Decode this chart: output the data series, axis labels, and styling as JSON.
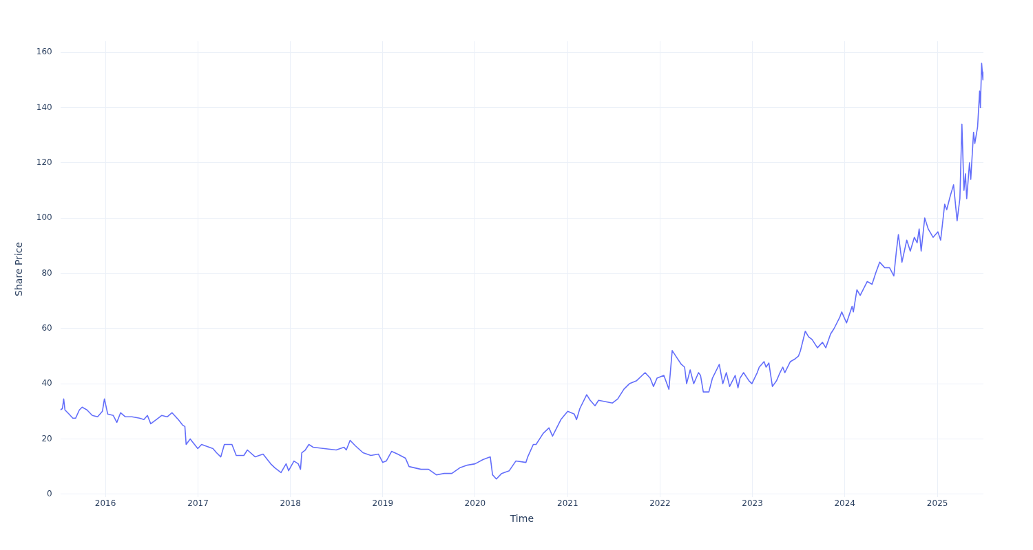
{
  "chart_data": {
    "type": "line",
    "xlabel": "Time",
    "ylabel": "Share Price",
    "xlim": [
      "2015-07-07",
      "2025-07-02"
    ],
    "ylim": [
      -1,
      164
    ],
    "xticks": [
      "2016",
      "2017",
      "2018",
      "2019",
      "2020",
      "2021",
      "2022",
      "2023",
      "2024",
      "2025"
    ],
    "yticks": [
      0,
      20,
      40,
      60,
      80,
      100,
      120,
      140,
      160
    ],
    "grid": true,
    "legend": false,
    "marker": "none",
    "line_style": "solid",
    "series": [
      {
        "color": "#636efa",
        "x": [
          "2015-07-07",
          "2015-07-15",
          "2015-07-20",
          "2015-07-25",
          "2015-08-10",
          "2015-08-25",
          "2015-09-05",
          "2015-09-20",
          "2015-10-01",
          "2015-10-20",
          "2015-11-10",
          "2015-12-01",
          "2015-12-20",
          "2015-12-28",
          "2016-01-10",
          "2016-02-01",
          "2016-02-15",
          "2016-03-01",
          "2016-03-20",
          "2016-04-15",
          "2016-05-15",
          "2016-06-01",
          "2016-06-15",
          "2016-06-28",
          "2016-07-20",
          "2016-08-10",
          "2016-09-01",
          "2016-09-20",
          "2016-10-15",
          "2016-11-01",
          "2016-11-10",
          "2016-11-15",
          "2016-12-01",
          "2016-12-31",
          "2017-01-15",
          "2017-03-01",
          "2017-03-15",
          "2017-04-01",
          "2017-04-15",
          "2017-05-15",
          "2017-06-01",
          "2017-07-01",
          "2017-07-15",
          "2017-08-15",
          "2017-09-15",
          "2017-10-15",
          "2017-11-01",
          "2017-11-25",
          "2017-12-15",
          "2017-12-25",
          "2018-01-15",
          "2018-02-01",
          "2018-02-10",
          "2018-02-15",
          "2018-03-01",
          "2018-03-15",
          "2018-04-01",
          "2018-05-15",
          "2018-07-01",
          "2018-08-01",
          "2018-08-10",
          "2018-08-25",
          "2018-09-15",
          "2018-10-15",
          "2018-11-15",
          "2018-12-15",
          "2019-01-01",
          "2019-01-15",
          "2019-02-05",
          "2019-03-01",
          "2019-04-01",
          "2019-04-15",
          "2019-06-01",
          "2019-07-01",
          "2019-08-01",
          "2019-09-01",
          "2019-10-01",
          "2019-11-01",
          "2019-12-01",
          "2020-01-01",
          "2020-02-01",
          "2020-03-01",
          "2020-03-10",
          "2020-03-25",
          "2020-04-15",
          "2020-05-15",
          "2020-06-10",
          "2020-07-20",
          "2020-07-27",
          "2020-08-18",
          "2020-08-29",
          "2020-09-26",
          "2020-10-19",
          "2020-11-02",
          "2020-12-05",
          "2021-01-01",
          "2021-01-27",
          "2021-02-05",
          "2021-02-18",
          "2021-03-17",
          "2021-03-31",
          "2021-04-19",
          "2021-05-03",
          "2021-06-27",
          "2021-07-18",
          "2021-08-11",
          "2021-09-02",
          "2021-09-29",
          "2021-11-03",
          "2021-11-23",
          "2021-12-06",
          "2021-12-20",
          "2022-01-16",
          "2022-02-05",
          "2022-02-18",
          "2022-03-04",
          "2022-03-26",
          "2022-04-08",
          "2022-04-16",
          "2022-04-30",
          "2022-05-14",
          "2022-06-02",
          "2022-06-10",
          "2022-06-21",
          "2022-07-13",
          "2022-07-27",
          "2022-08-23",
          "2022-09-06",
          "2022-09-20",
          "2022-10-03",
          "2022-10-25",
          "2022-11-05",
          "2022-11-13",
          "2022-11-27",
          "2022-12-19",
          "2022-12-30",
          "2023-01-20",
          "2023-01-28",
          "2023-02-16",
          "2023-02-24",
          "2023-03-07",
          "2023-03-21",
          "2023-04-06",
          "2023-04-20",
          "2023-05-01",
          "2023-05-09",
          "2023-05-31",
          "2023-06-19",
          "2023-07-02",
          "2023-07-10",
          "2023-07-29",
          "2023-08-11",
          "2023-08-25",
          "2023-09-15",
          "2023-10-05",
          "2023-10-18",
          "2023-11-06",
          "2023-11-20",
          "2023-12-12",
          "2023-12-20",
          "2024-01-08",
          "2024-01-30",
          "2024-02-04",
          "2024-02-18",
          "2024-03-02",
          "2024-03-30",
          "2024-04-18",
          "2024-05-02",
          "2024-05-18",
          "2024-06-07",
          "2024-06-26",
          "2024-07-13",
          "2024-07-23",
          "2024-07-31",
          "2024-08-14",
          "2024-09-02",
          "2024-09-16",
          "2024-10-02",
          "2024-10-13",
          "2024-10-21",
          "2024-10-29",
          "2024-11-12",
          "2024-11-26",
          "2024-12-15",
          "2025-01-03",
          "2025-01-14",
          "2025-01-30",
          "2025-02-07",
          "2025-02-21",
          "2025-03-06",
          "2025-03-20",
          "2025-03-31",
          "2025-04-08",
          "2025-04-16",
          "2025-04-22",
          "2025-04-27",
          "2025-05-08",
          "2025-05-13",
          "2025-05-24",
          "2025-05-29",
          "2025-06-09",
          "2025-06-17",
          "2025-06-20",
          "2025-06-25",
          "2025-06-30",
          "2025-07-02"
        ],
        "values": [
          30.5,
          31,
          34.5,
          30.5,
          29,
          27.5,
          27.5,
          30.5,
          31.5,
          30.5,
          28.5,
          28,
          30,
          34.5,
          29,
          28.5,
          26,
          29.5,
          28,
          28,
          27.5,
          27,
          28.5,
          25.5,
          27,
          28.5,
          28,
          29.5,
          27,
          25,
          24.5,
          18,
          20,
          16.5,
          18,
          16.5,
          15,
          13.5,
          18,
          18,
          14,
          14,
          16,
          13.5,
          14.5,
          11,
          9.5,
          7.8,
          11,
          8.5,
          12,
          11,
          9,
          15,
          16,
          18,
          17,
          16.5,
          16,
          17,
          16,
          19.5,
          17.5,
          15,
          14,
          14.5,
          11.5,
          12,
          15.5,
          14.5,
          13,
          10,
          9,
          9,
          7,
          7.5,
          7.5,
          9.5,
          10.5,
          11,
          12.5,
          13.5,
          7,
          5.5,
          7.5,
          8.5,
          12,
          11.5,
          13.5,
          18,
          18,
          22,
          24,
          21,
          27,
          30,
          29,
          27,
          31,
          36,
          34,
          32,
          34,
          33,
          34.5,
          38,
          40,
          41,
          44,
          42,
          39,
          42,
          43,
          38,
          52,
          50,
          47,
          46,
          40,
          45,
          40,
          44,
          43,
          37,
          37,
          42,
          47,
          40,
          44,
          39,
          43,
          38.5,
          42,
          44,
          41,
          40,
          44,
          46,
          48,
          46,
          47.5,
          39,
          41,
          44,
          46,
          44,
          48,
          49,
          50,
          52,
          59,
          57,
          56,
          53,
          55,
          53,
          58,
          60,
          64,
          66,
          62,
          68,
          66,
          74,
          72,
          77,
          76,
          80,
          84,
          82,
          82,
          79,
          88,
          94,
          84,
          92,
          88,
          93,
          91,
          96,
          88,
          100,
          96,
          93,
          95,
          92,
          105,
          103,
          108,
          112,
          99,
          107,
          134,
          110,
          116,
          107,
          120,
          114,
          131,
          127,
          133,
          146,
          140,
          156,
          150,
          153
        ]
      }
    ]
  }
}
